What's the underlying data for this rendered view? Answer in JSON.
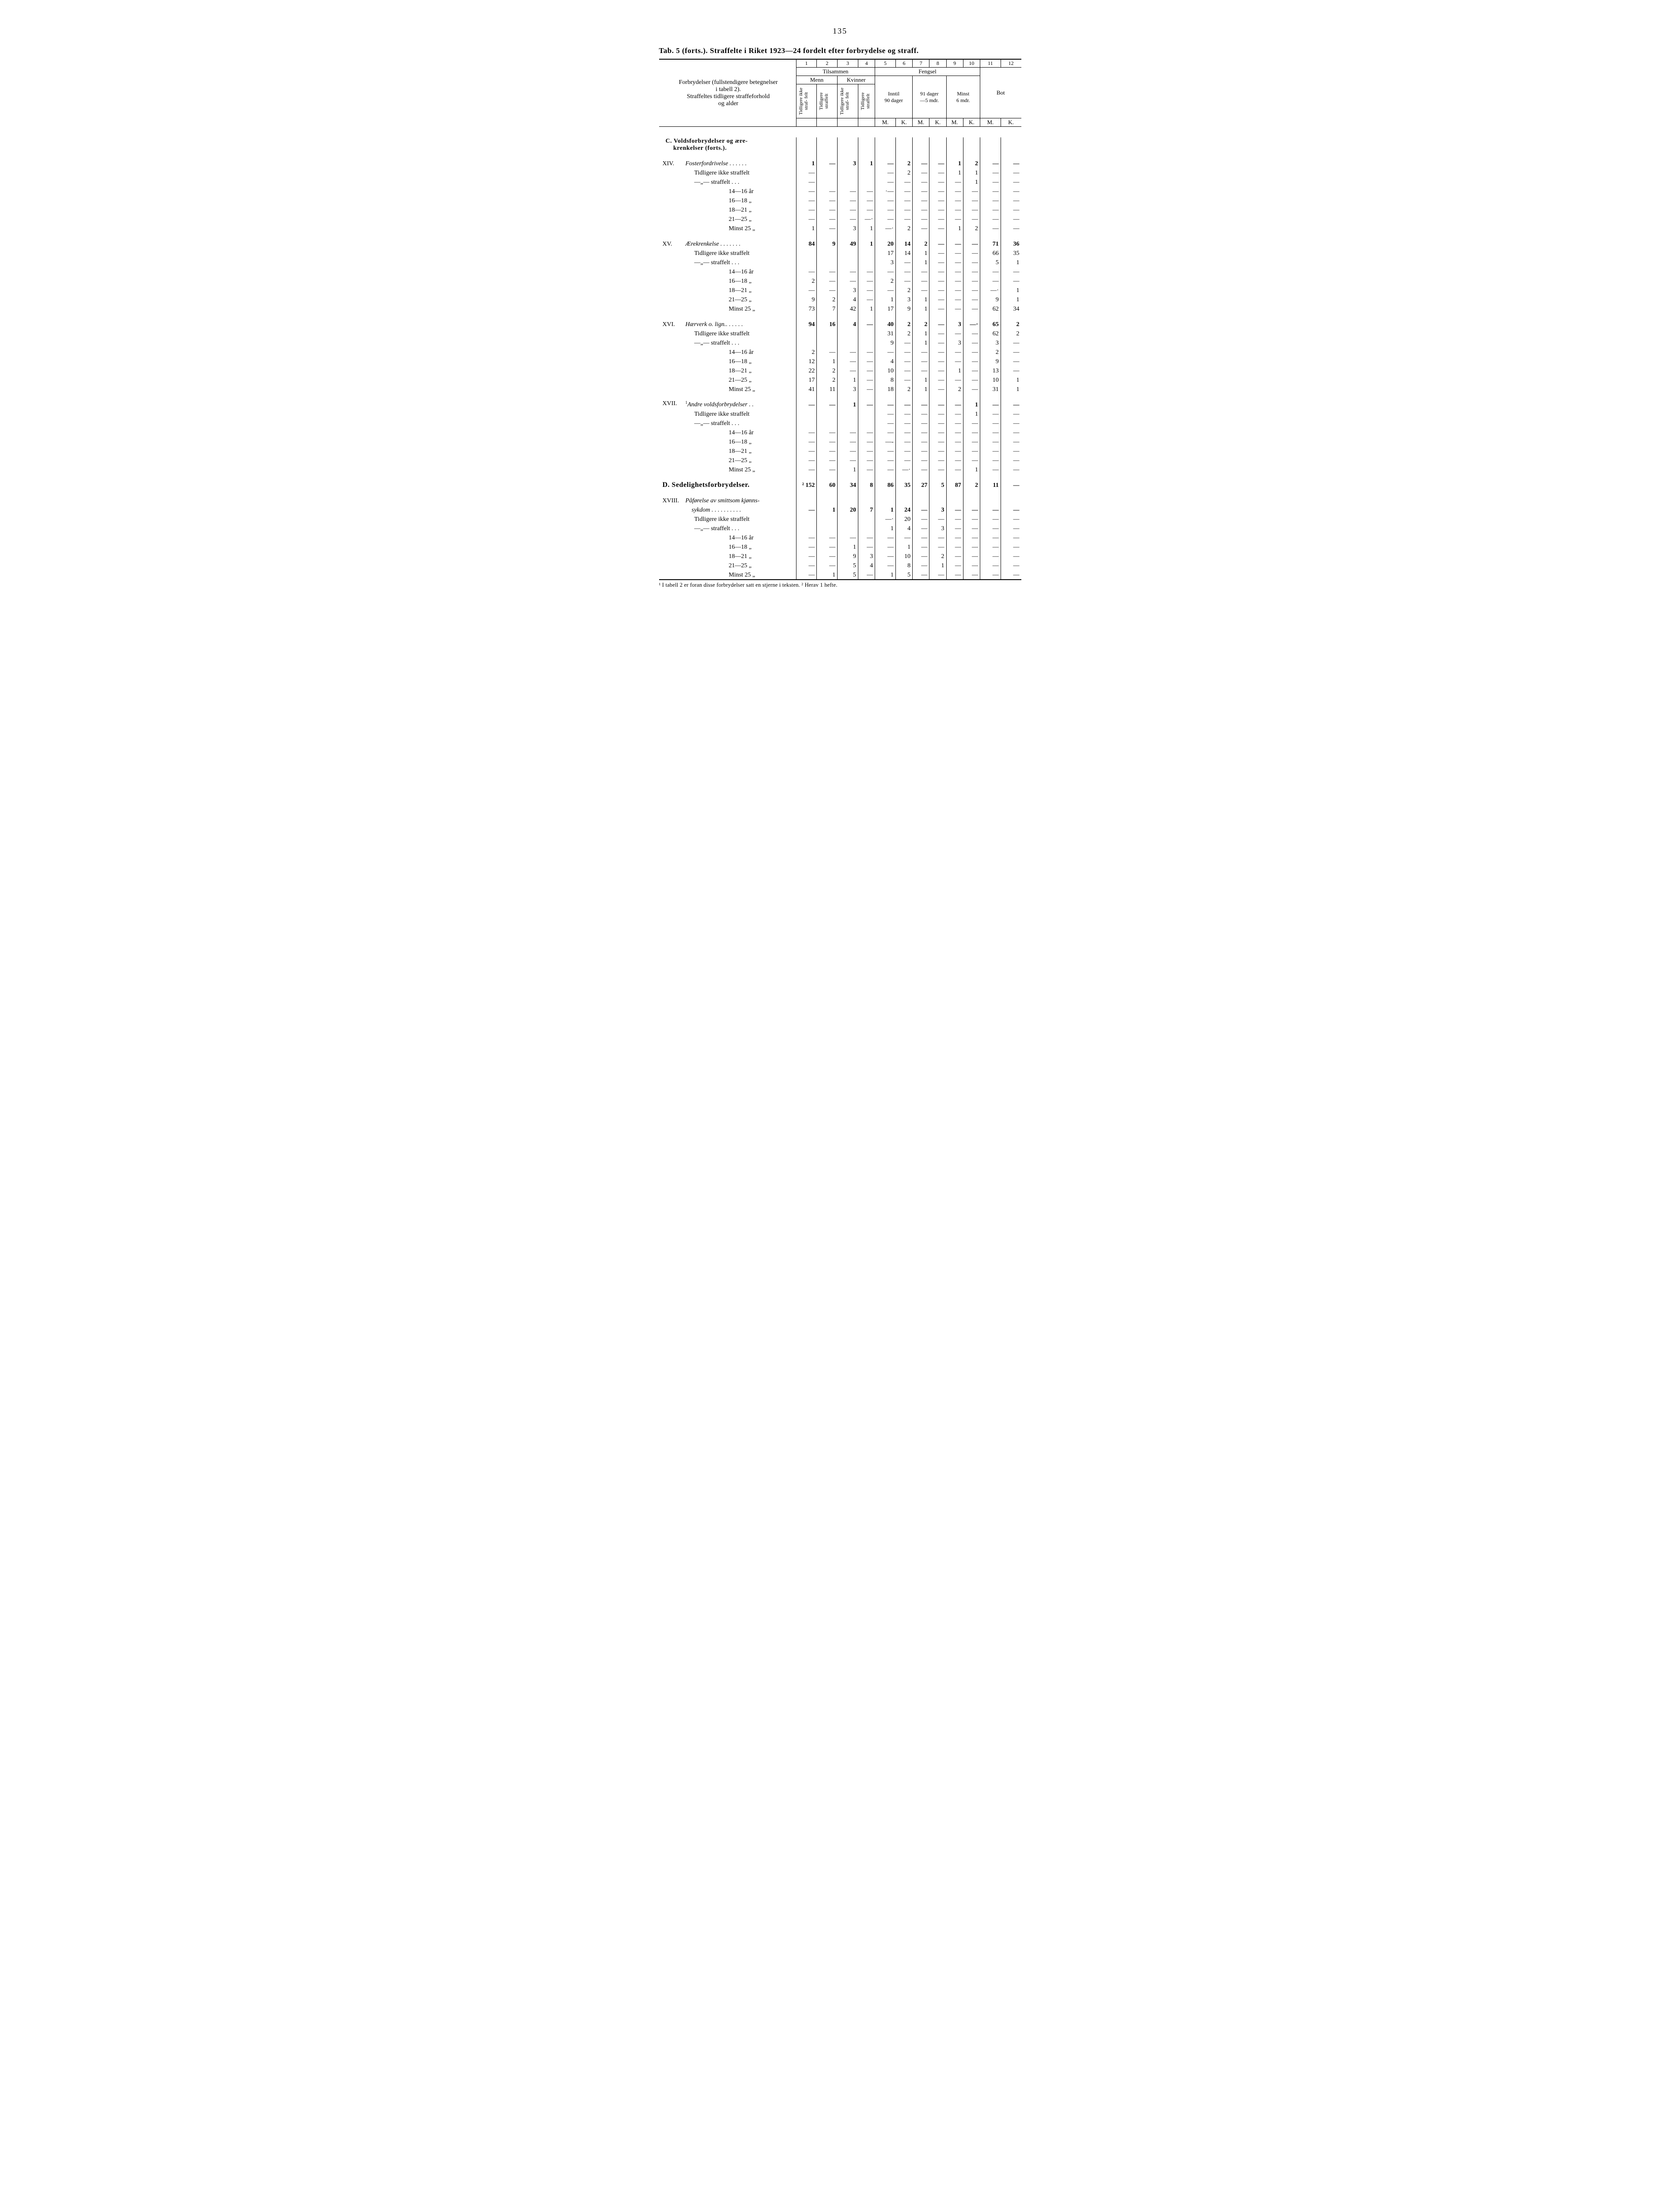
{
  "page_number": "135",
  "title_prefix": "Tab. 5 (forts.).",
  "title_rest": "Straffelte i Riket 1923—24 fordelt efter forbrydelse og straff.",
  "header": {
    "left_block": [
      "Forbrydelser (fullstendigere betegnelser",
      "i tabell 2).",
      "Straffeltes tidligere straffeforhold",
      "og alder"
    ],
    "tilsammen": "Tilsammen",
    "menn": "Menn",
    "kvinner": "Kvinner",
    "fengsel": "Fengsel",
    "bot": "Bot",
    "inntil90": "Inntil 90 dager",
    "d91_5m": "91 dager —5 mdr.",
    "minst6m": "Minst 6 mdr.",
    "tid_ikke": "Tidligere ikke straf- felt",
    "tid_str": "Tidligere straffelt",
    "M": "M.",
    "K": "K."
  },
  "colnums": [
    "1",
    "2",
    "3",
    "4",
    "5",
    "6",
    "7",
    "8",
    "9",
    "10",
    "11",
    "12"
  ],
  "sections": {
    "C_head": "C.  Voldsforbrydelser og ære-",
    "C_head2": "krenkelser (forts.).",
    "D_head": "D.   Sedelighetsforbrydelser."
  },
  "row_labels": {
    "tid_ikke": "Tidligere  ikke  straffelt",
    "tid_str": "—„—      straffelt .  .  .",
    "a14_16": "14—16 år",
    "a16_18": "16—18  „",
    "a18_21": "18—21  „",
    "a21_25": "21—25  „",
    "minst25": "Minst 25  „"
  },
  "groups": [
    {
      "roman": "XIV.",
      "title": "Fosterfordrivelse .  .  .  .  .  .",
      "head": [
        "1",
        "—",
        "3",
        "1",
        "—",
        "2",
        "—",
        "—",
        "1",
        "2",
        "—",
        "—"
      ],
      "rows": [
        [
          "—",
          "",
          "",
          "",
          "—",
          "2",
          "—",
          "—",
          "1",
          "1",
          "—",
          "—"
        ],
        [
          "—",
          "",
          "",
          "",
          "—",
          "—",
          "—",
          "—",
          "—",
          "1",
          "—",
          "—"
        ],
        [
          "—",
          "—",
          "—",
          "—",
          "·—",
          "—",
          "—",
          "—",
          "—",
          "—",
          "—",
          "—"
        ],
        [
          "—",
          "—",
          "—",
          "—",
          "—",
          "—",
          "—",
          "—",
          "—",
          "—",
          "—",
          "—"
        ],
        [
          "—",
          "—",
          "—",
          "—",
          "—",
          "—",
          "—",
          "—",
          "—",
          "—",
          "—",
          "—"
        ],
        [
          "—",
          "—",
          "—",
          "—·",
          "—",
          "—",
          "—",
          "—",
          "—",
          "—",
          "—",
          "—"
        ],
        [
          "1",
          "—",
          "3",
          "1",
          "—·",
          "2",
          "—",
          "—",
          "1",
          "2",
          "—",
          "—"
        ]
      ]
    },
    {
      "roman": "XV.",
      "title": "Ærekrenkelse  .  .  .  .  .  .  .",
      "head": [
        "84",
        "9",
        "49",
        "1",
        "20",
        "14",
        "2",
        "—",
        "—",
        "—",
        "71",
        "36"
      ],
      "rows": [
        [
          "",
          "",
          "",
          "",
          "17",
          "14",
          "1",
          "—",
          "—",
          "—",
          "66",
          "35"
        ],
        [
          "",
          "",
          "",
          "",
          "3",
          "—",
          "1",
          "—",
          "—",
          "—",
          "5",
          "1"
        ],
        [
          "—",
          "—",
          "—",
          "—",
          "—",
          "—",
          "—",
          "—",
          "—",
          "—",
          "—",
          "—"
        ],
        [
          "2",
          "—",
          "—",
          "—",
          "2",
          "—",
          "—",
          "—",
          "—",
          "—",
          "—",
          "—"
        ],
        [
          "—",
          "—",
          "3",
          "—",
          "—",
          "2",
          "—",
          "—",
          "—",
          "—",
          "—·",
          "1"
        ],
        [
          "9",
          "2",
          "4",
          "—",
          "1",
          "3",
          "1",
          "—",
          "—",
          "—",
          "9",
          "1"
        ],
        [
          "73",
          "7",
          "42",
          "1",
          "17",
          "9",
          "1",
          "—",
          "—",
          "—",
          "62",
          "34"
        ]
      ]
    },
    {
      "roman": "XVI.",
      "title": "Hærverk o. lign..  .  .  .  .  .",
      "head": [
        "94",
        "16",
        "4",
        "—",
        "40",
        "2",
        "2",
        "—",
        "3",
        "—·",
        "65",
        "2"
      ],
      "rows": [
        [
          "",
          "",
          "",
          "",
          "31",
          "2",
          "1",
          "—",
          "—",
          "—",
          "62",
          "2"
        ],
        [
          "",
          "",
          "",
          "",
          "9",
          "—",
          "1",
          "—",
          "3",
          "—",
          "3",
          "—"
        ],
        [
          "2",
          "—",
          "—",
          "—",
          "—",
          "—",
          "—",
          "—",
          "—",
          "—",
          "2",
          "—"
        ],
        [
          "12",
          "1",
          "—",
          "—",
          "4",
          "—",
          "—",
          "—",
          "—",
          "—",
          "9",
          "—"
        ],
        [
          "22",
          "2",
          "—",
          "—",
          "10",
          "—",
          "—",
          "—",
          "1",
          "—",
          "13",
          "—"
        ],
        [
          "17",
          "2",
          "1",
          "—",
          "8",
          "—",
          "1",
          "—",
          "—",
          "—",
          "10",
          "1"
        ],
        [
          "41",
          "11",
          "3",
          "—",
          "18",
          "2",
          "1",
          "—",
          "2",
          "—",
          "31",
          "1"
        ]
      ]
    },
    {
      "roman": "XVII.",
      "title_prefix_sup": "1",
      "title": "Andre voldsforbrydelser  .  .",
      "head": [
        "—",
        "—",
        "1",
        "—",
        "—",
        "—",
        "—",
        "—",
        "—",
        "1",
        "—",
        "—"
      ],
      "rows": [
        [
          "",
          "",
          "",
          "",
          "—",
          "—",
          "—",
          "—",
          "—",
          "1",
          "—",
          "—"
        ],
        [
          "",
          "",
          "",
          "",
          "—",
          "—",
          "—",
          "—",
          "—",
          "—",
          "—",
          "—"
        ],
        [
          "—",
          "—",
          "—",
          "—",
          "—",
          "—",
          "—",
          "—",
          "—",
          "—",
          "—",
          "—"
        ],
        [
          "—",
          "—",
          "—",
          "—",
          "—-",
          "—",
          "—",
          "—",
          "—",
          "—",
          "—",
          "—"
        ],
        [
          "—",
          "—",
          "—",
          "—",
          "—",
          "—",
          "—",
          "—",
          "—",
          "—",
          "—",
          "—"
        ],
        [
          "—",
          "—",
          "—",
          "—",
          "—",
          "—",
          "—",
          "—",
          "—",
          "—",
          "—",
          "—"
        ],
        [
          "—",
          "—",
          "1",
          "—",
          "—",
          "—·",
          "—",
          "—",
          "—",
          "1",
          "—",
          "—"
        ]
      ]
    }
  ],
  "D_row": [
    "² 152",
    "60",
    "34",
    "8",
    "86",
    "35",
    "27",
    "5",
    "87",
    "2",
    "11",
    "—"
  ],
  "group_xviii": {
    "roman": "XVIII.",
    "title1": "Påførelse av smittsom kjønns-",
    "title2": "sykdom .  .  .  .  .  .  .  .  .  .",
    "head": [
      "—",
      "1",
      "20",
      "7",
      "1",
      "24",
      "—",
      "3",
      "—",
      "—",
      "—",
      "—"
    ],
    "rows": [
      [
        "",
        "",
        "",
        "",
        "—·",
        "20",
        "—",
        "—",
        "—",
        "—",
        "—",
        "—"
      ],
      [
        "",
        "",
        "",
        "",
        "1",
        "4",
        "—",
        "3",
        "—",
        "—",
        "—",
        "—"
      ],
      [
        "—",
        "—",
        "—",
        "—",
        "—",
        "—",
        "—",
        "—",
        "—",
        "—",
        "—",
        "—"
      ],
      [
        "—",
        "—",
        "1",
        "—",
        "—",
        "1",
        "—",
        "—",
        "—",
        "—",
        "—",
        "—"
      ],
      [
        "—",
        "—",
        "9",
        "3",
        "—",
        "10",
        "—",
        "2",
        "—",
        "—",
        "—",
        "—"
      ],
      [
        "—",
        "—",
        "5",
        "4",
        "—",
        "8",
        "—",
        "1",
        "—",
        "—",
        "—",
        "—"
      ],
      [
        "—",
        "1",
        "5",
        "—",
        "1",
        "5",
        "—",
        "—",
        "—",
        "—",
        "—",
        "—"
      ]
    ]
  },
  "footnote": "¹  I tabell 2 er foran disse forbrydelser satt en stjerne i teksten.   ²  Herav 1 hefte."
}
